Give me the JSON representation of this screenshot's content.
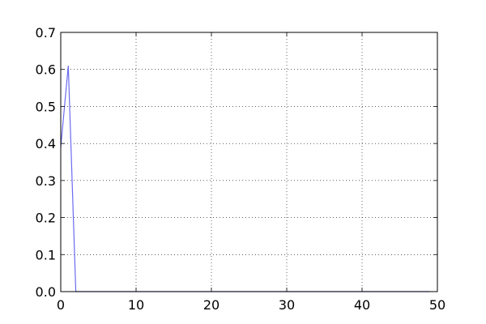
{
  "chart_data": {
    "type": "line",
    "xlim": [
      0,
      50
    ],
    "ylim": [
      0,
      0.7
    ],
    "x_ticks": [
      "0",
      "10",
      "20",
      "30",
      "40",
      "50"
    ],
    "y_ticks": [
      "0.0",
      "0.1",
      "0.2",
      "0.3",
      "0.4",
      "0.5",
      "0.6",
      "0.7"
    ],
    "grid": true,
    "series": [
      {
        "color": "#6b6bf0",
        "x": [
          0,
          1,
          2,
          3,
          4,
          5,
          6,
          7,
          8,
          9,
          10,
          11,
          12,
          13,
          14,
          15,
          16,
          17,
          18,
          19,
          20,
          21,
          22,
          23,
          24,
          25,
          26,
          27,
          28,
          29,
          30,
          31,
          32,
          33,
          34,
          35,
          36,
          37,
          38,
          39,
          40,
          41,
          42,
          43,
          44,
          45,
          46,
          47,
          48,
          49
        ],
        "y": [
          0.39,
          0.61,
          0,
          0,
          0,
          0,
          0,
          0,
          0,
          0,
          0,
          0,
          0,
          0,
          0,
          0,
          0,
          0,
          0,
          0,
          0,
          0,
          0,
          0,
          0,
          0,
          0,
          0,
          0,
          0,
          0,
          0,
          0,
          0,
          0,
          0,
          0,
          0,
          0,
          0,
          0,
          0,
          0,
          0,
          0,
          0,
          0,
          0,
          0,
          0
        ]
      }
    ]
  }
}
